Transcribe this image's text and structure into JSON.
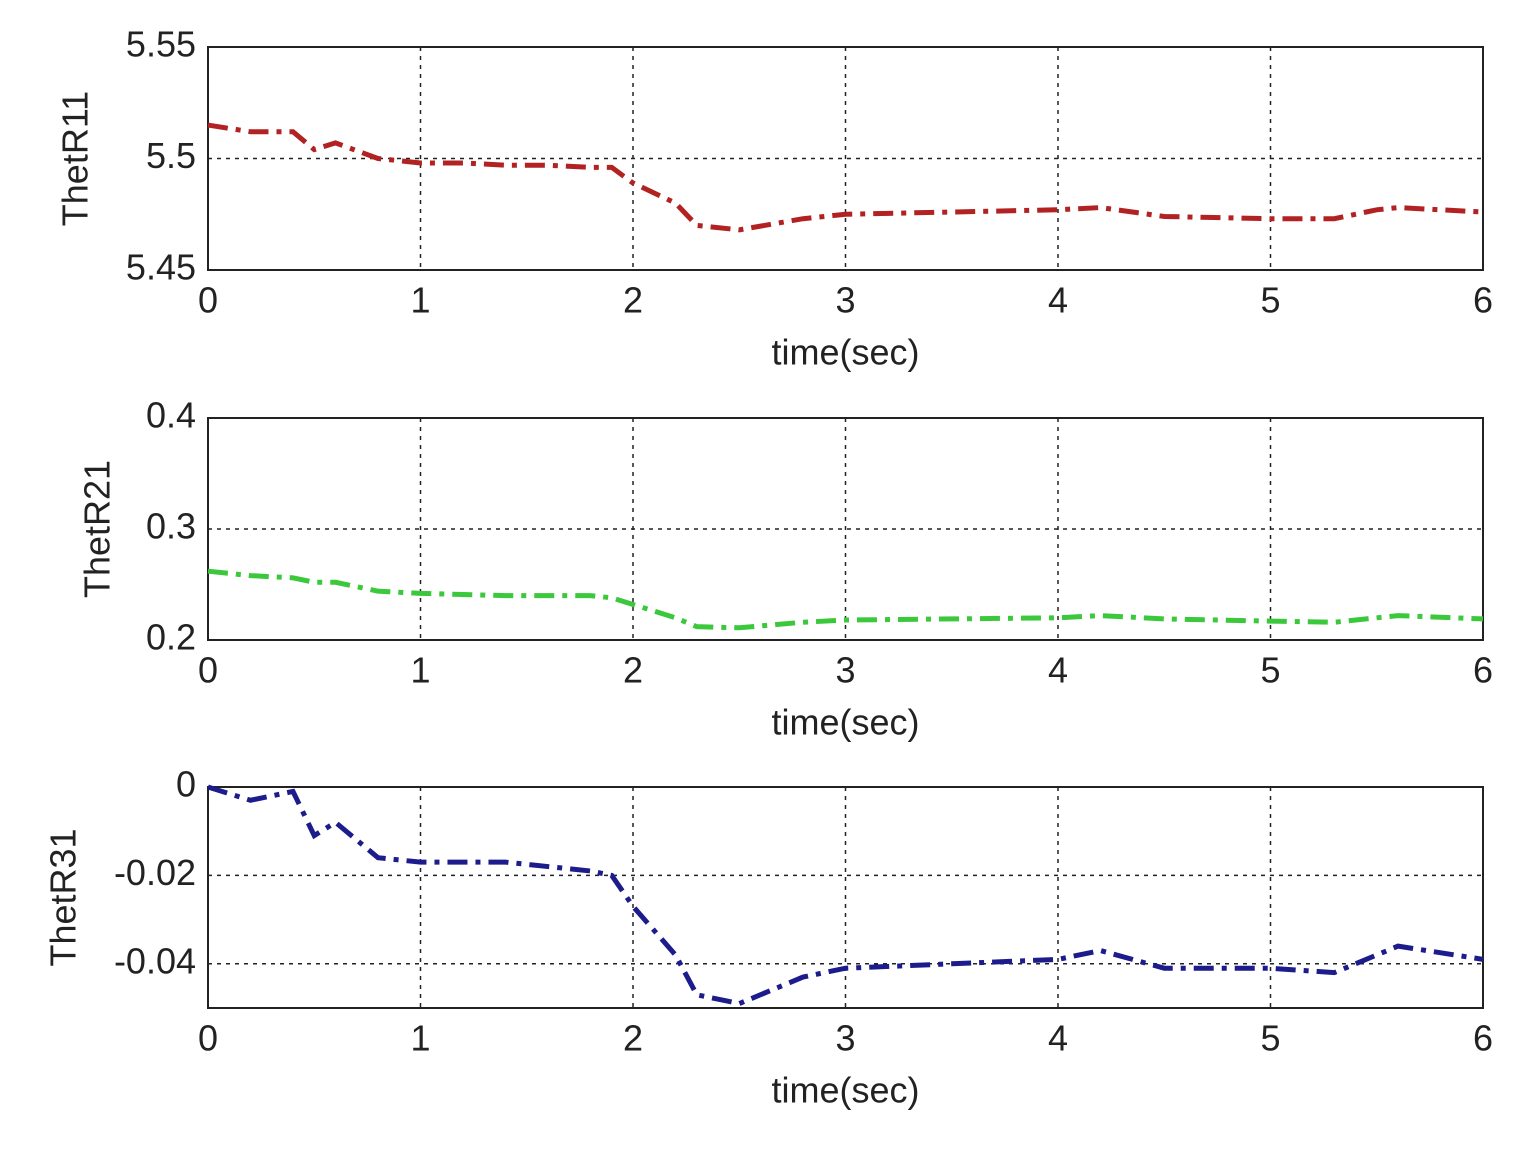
{
  "chart_data": [
    {
      "type": "line",
      "ylabel": "ThetR11",
      "xlabel": "time(sec)",
      "color": "#b22222",
      "line_style": "dashdot",
      "grid": true,
      "x": [
        0,
        0.2,
        0.4,
        0.5,
        0.6,
        0.8,
        1,
        1.2,
        1.4,
        1.6,
        1.8,
        1.9,
        2,
        2.2,
        2.3,
        2.5,
        2.8,
        3,
        3.5,
        4,
        4.2,
        4.5,
        5,
        5.3,
        5.5,
        5.6,
        6
      ],
      "values": [
        5.515,
        5.512,
        5.512,
        5.504,
        5.507,
        5.5,
        5.498,
        5.498,
        5.497,
        5.497,
        5.496,
        5.496,
        5.489,
        5.48,
        5.47,
        5.468,
        5.473,
        5.475,
        5.476,
        5.477,
        5.478,
        5.474,
        5.473,
        5.473,
        5.477,
        5.478,
        5.476
      ],
      "xlim": [
        0,
        6
      ],
      "xticks": [
        0,
        1,
        2,
        3,
        4,
        5,
        6
      ],
      "ylim": [
        5.45,
        5.55
      ],
      "yticks": [
        5.45,
        5.5,
        5.55
      ]
    },
    {
      "type": "line",
      "ylabel": "ThetR21",
      "xlabel": "time(sec)",
      "color": "#3cc83c",
      "line_style": "dashdot",
      "grid": true,
      "x": [
        0,
        0.2,
        0.4,
        0.5,
        0.6,
        0.8,
        1,
        1.2,
        1.4,
        1.6,
        1.8,
        1.9,
        2,
        2.2,
        2.3,
        2.5,
        2.8,
        3,
        3.5,
        4,
        4.2,
        4.5,
        5,
        5.3,
        5.5,
        5.6,
        6
      ],
      "values": [
        0.262,
        0.258,
        0.256,
        0.252,
        0.252,
        0.244,
        0.242,
        0.241,
        0.24,
        0.24,
        0.24,
        0.238,
        0.232,
        0.22,
        0.212,
        0.211,
        0.216,
        0.218,
        0.219,
        0.22,
        0.222,
        0.219,
        0.217,
        0.216,
        0.22,
        0.222,
        0.219
      ],
      "xlim": [
        0,
        6
      ],
      "xticks": [
        0,
        1,
        2,
        3,
        4,
        5,
        6
      ],
      "ylim": [
        0.2,
        0.4
      ],
      "yticks": [
        0.2,
        0.3,
        0.4
      ]
    },
    {
      "type": "line",
      "ylabel": "ThetR31",
      "xlabel": "time(sec)",
      "color": "#1c1c8c",
      "line_style": "dashdot",
      "grid": true,
      "x": [
        0,
        0.2,
        0.4,
        0.5,
        0.6,
        0.8,
        1,
        1.2,
        1.4,
        1.6,
        1.8,
        1.9,
        2,
        2.2,
        2.3,
        2.5,
        2.8,
        3,
        3.5,
        4,
        4.2,
        4.5,
        5,
        5.3,
        5.5,
        5.6,
        6
      ],
      "values": [
        0,
        -0.003,
        -0.001,
        -0.011,
        -0.008,
        -0.016,
        -0.017,
        -0.017,
        -0.017,
        -0.018,
        -0.019,
        -0.02,
        -0.027,
        -0.038,
        -0.047,
        -0.049,
        -0.043,
        -0.041,
        -0.04,
        -0.039,
        -0.037,
        -0.041,
        -0.041,
        -0.042,
        -0.038,
        -0.036,
        -0.039
      ],
      "xlim": [
        0,
        6
      ],
      "xticks": [
        0,
        1,
        2,
        3,
        4,
        5,
        6
      ],
      "ylim": [
        -0.05,
        0
      ],
      "yticks": [
        -0.04,
        -0.02,
        0
      ]
    }
  ]
}
